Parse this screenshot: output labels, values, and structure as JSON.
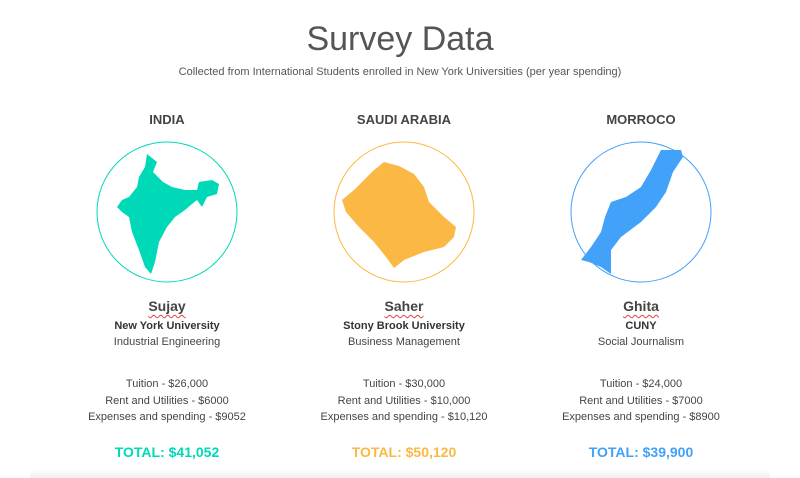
{
  "header": {
    "title": "Survey Data",
    "subtitle": "Collected from International Students enrolled in New York Universities (per year spending)"
  },
  "cards": [
    {
      "country": "INDIA",
      "name": "Sujay",
      "university": "New York University",
      "major": "Industrial Engineering",
      "costs": [
        "Tuition - $26,000",
        "Rent and Utilities - $6000",
        "Expenses and spending - $9052"
      ],
      "total": "TOTAL: $41,052"
    },
    {
      "country": "SAUDI ARABIA",
      "name": "Saher",
      "university": "Stony Brook University",
      "major": "Business Management",
      "costs": [
        "Tuition - $30,000",
        "Rent and Utilities - $10,000",
        "Expenses and spending - $10,120"
      ],
      "total": "TOTAL: $50,120"
    },
    {
      "country": "MORROCO",
      "name": "Ghita",
      "university": "CUNY",
      "major": "Social Journalism",
      "costs": [
        "Tuition - $24,000",
        "Rent and Utilities - $7000",
        "Expenses and spending - $8900"
      ],
      "total": "TOTAL: $39,900"
    }
  ]
}
